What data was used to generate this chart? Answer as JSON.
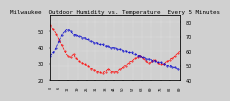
{
  "title": "Milwaukee  Outdoor Humidity vs. Temperature  Every 5 Minutes",
  "bg_color": "#d0d0d0",
  "plot_bg_color": "#d0d0d0",
  "grid_color": "#ffffff",
  "red_line_color": "#ff0000",
  "blue_line_color": "#0000cc",
  "temp_values": [
    78,
    76,
    75,
    74,
    72,
    70,
    68,
    66,
    64,
    62,
    60,
    58,
    57,
    56,
    56,
    57,
    58,
    56,
    55,
    54,
    53,
    52,
    52,
    51,
    51,
    50,
    50,
    49,
    48,
    48,
    47,
    47,
    46,
    46,
    46,
    45,
    45,
    46,
    46,
    47,
    48,
    47,
    46,
    46,
    46,
    46,
    46,
    47,
    48,
    48,
    49,
    50,
    50,
    51,
    52,
    53,
    53,
    54,
    55,
    55,
    56,
    57,
    57,
    56,
    55,
    54,
    53,
    52,
    52,
    52,
    53,
    54,
    54,
    53,
    52,
    51,
    51,
    51,
    51,
    52,
    53,
    53,
    54,
    55,
    55,
    56,
    57,
    58,
    59,
    60
  ],
  "humidity_values": [
    35,
    36,
    37,
    38,
    40,
    42,
    44,
    46,
    48,
    49,
    50,
    51,
    51,
    51,
    50,
    49,
    48,
    48,
    48,
    47,
    47,
    47,
    46,
    46,
    46,
    45,
    45,
    44,
    44,
    44,
    43,
    43,
    43,
    42,
    42,
    42,
    42,
    41,
    41,
    41,
    41,
    40,
    40,
    40,
    40,
    40,
    39,
    39,
    39,
    39,
    38,
    38,
    38,
    37,
    37,
    37,
    37,
    36,
    36,
    36,
    35,
    35,
    35,
    34,
    34,
    34,
    33,
    33,
    33,
    33,
    32,
    32,
    32,
    31,
    31,
    31,
    31,
    30,
    30,
    30,
    29,
    29,
    29,
    29,
    28,
    28,
    28,
    27,
    27,
    27
  ],
  "tick_fontsize": 3.5,
  "title_fontsize": 4.2
}
